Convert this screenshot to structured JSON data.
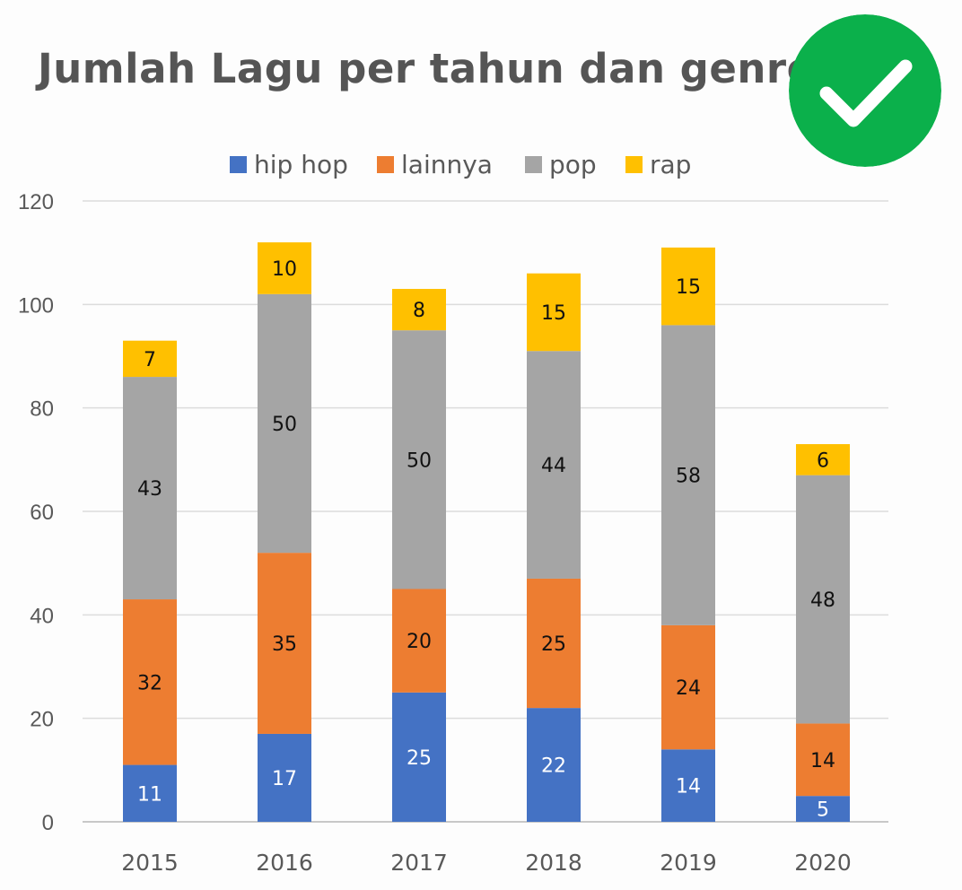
{
  "chart_data": {
    "type": "bar",
    "stacked": true,
    "title": "Jumlah Lagu per tahun dan genre",
    "categories": [
      "2015",
      "2016",
      "2017",
      "2018",
      "2019",
      "2020"
    ],
    "series": [
      {
        "name": "hip hop",
        "color": "#4472c4",
        "label_color": "#ffffff",
        "values": [
          11,
          17,
          25,
          22,
          14,
          5
        ]
      },
      {
        "name": "lainnya",
        "color": "#ed7d31",
        "label_color": "#111111",
        "values": [
          32,
          35,
          20,
          25,
          24,
          14
        ]
      },
      {
        "name": "pop",
        "color": "#a5a5a5",
        "label_color": "#111111",
        "values": [
          43,
          50,
          50,
          44,
          58,
          48
        ]
      },
      {
        "name": "rap",
        "color": "#ffc000",
        "label_color": "#111111",
        "values": [
          7,
          10,
          8,
          15,
          15,
          6
        ]
      }
    ],
    "ylim": [
      0,
      120
    ],
    "yticks": [
      0,
      20,
      40,
      60,
      80,
      100,
      120
    ],
    "grid": true,
    "legend": "top",
    "xlabel": "",
    "ylabel": ""
  },
  "badge": {
    "icon": "checkmark-icon",
    "color": "#0bb04b"
  }
}
